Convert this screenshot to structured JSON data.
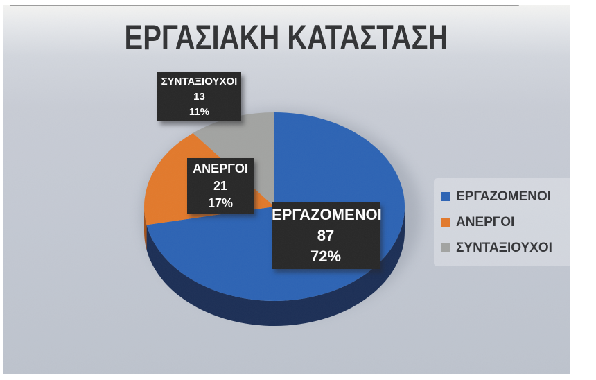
{
  "chart_data": {
    "type": "pie",
    "title": "ΕΡΓΑΣΙΑΚΗ ΚΑΤΑΣΤΑΣΗ",
    "labels": [
      "ΕΡΓΑΖΟΜΕΝΟΙ",
      "ΑΝΕΡΓΟΙ",
      "ΣΥΝΤΑΞΙΟΥΧΟΙ"
    ],
    "values": [
      87,
      21,
      13
    ],
    "percents": [
      "72%",
      "17%",
      "11%"
    ],
    "colors": [
      "#2c63b4",
      "#e2792b",
      "#a2a3a1"
    ],
    "side_colors": [
      "#1b2e55",
      "#a3511a",
      "#6f7170"
    ],
    "effect": "3d",
    "start_angle_deg": 0,
    "direction": "clockwise",
    "legend": {
      "position": "right",
      "entries": [
        "ΕΡΓΑΖΟΜΕΝΟΙ",
        "ΑΝΕΡΓΟΙ",
        "ΣΥΝΤΑΞΙΟΥΧΟΙ"
      ]
    },
    "data_label_style": "dark-box-with-name-value-percent"
  }
}
